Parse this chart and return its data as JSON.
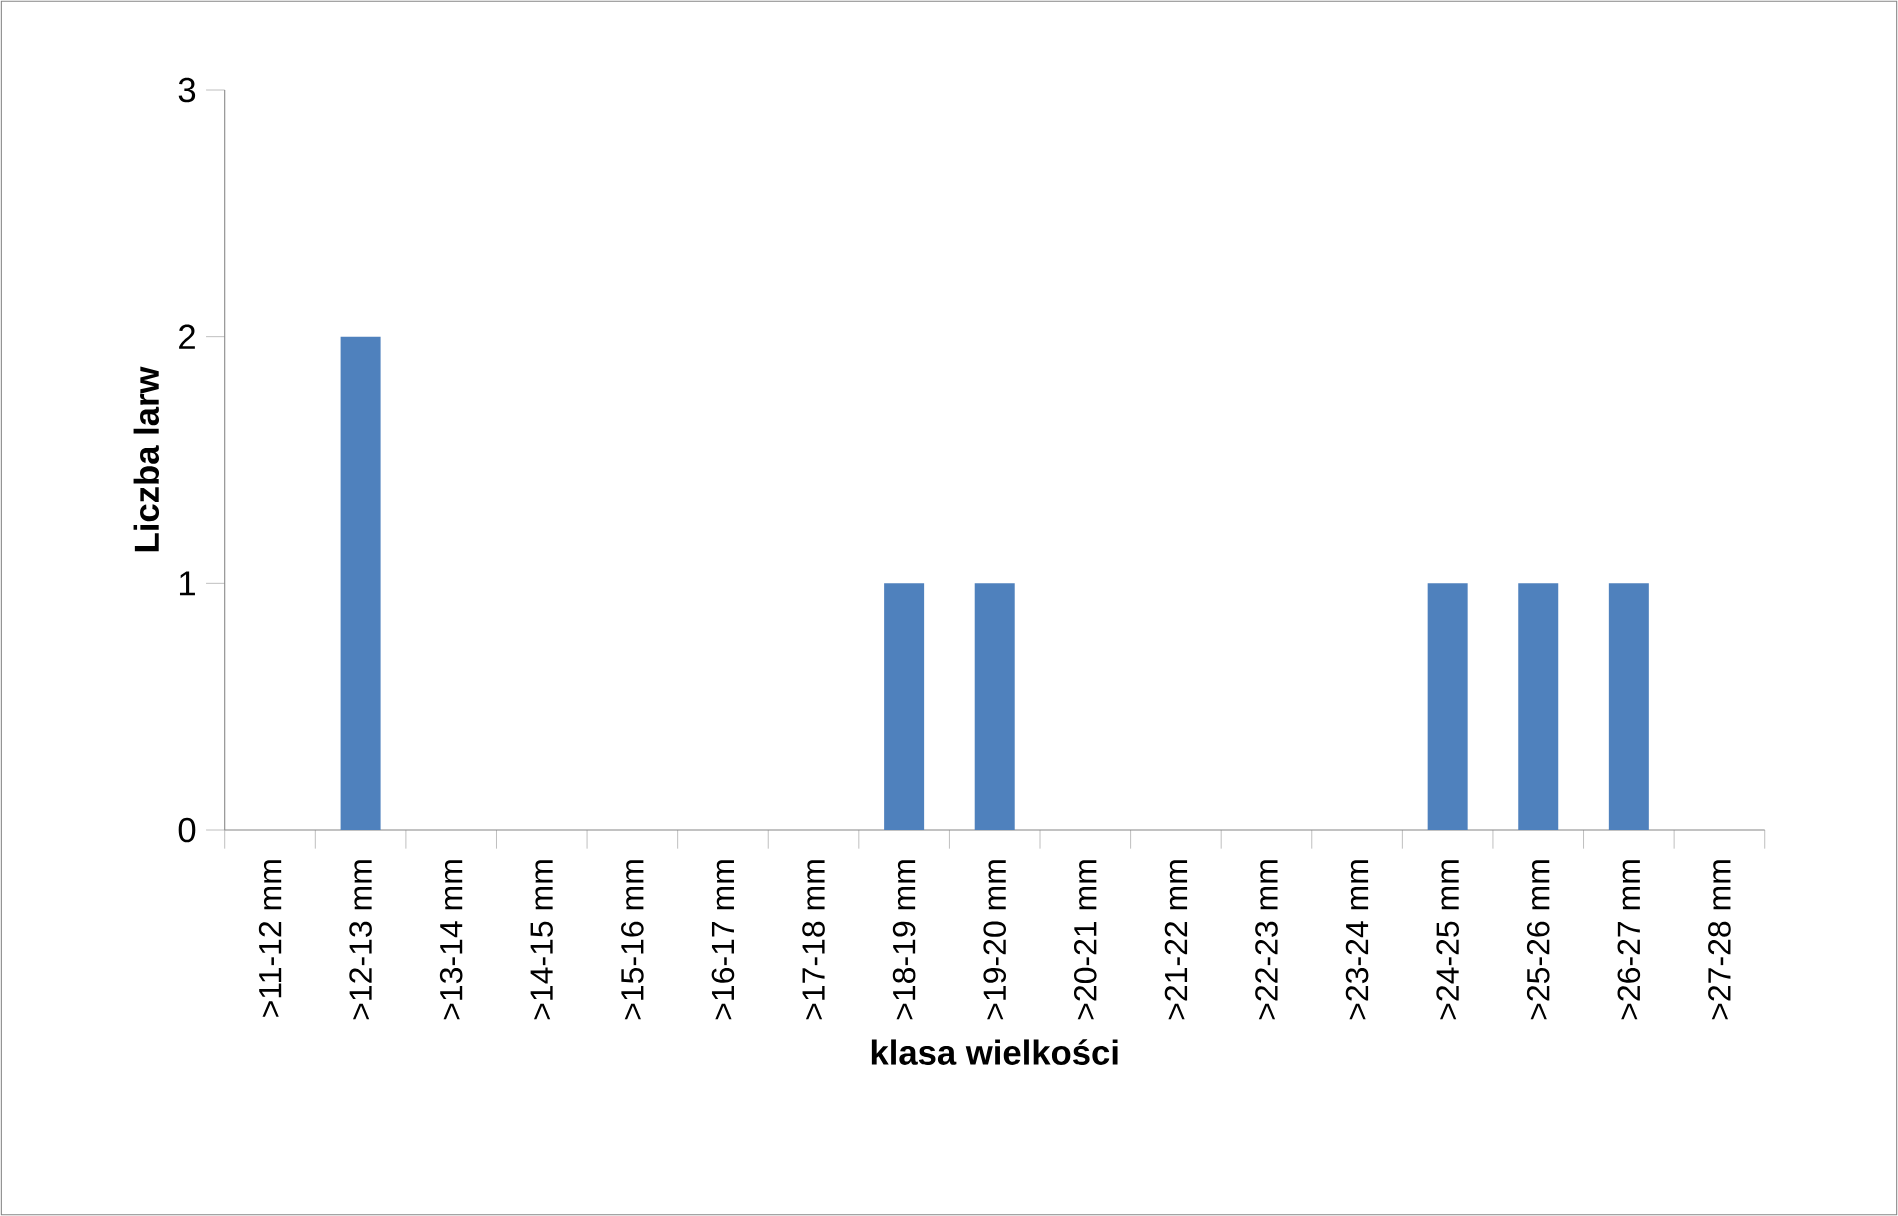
{
  "chart_data": {
    "type": "bar",
    "xlabel": "klasa wielkości",
    "ylabel": "Liczba larw",
    "categories": [
      ">11-12 mm",
      ">12-13 mm",
      ">13-14 mm",
      ">14-15 mm",
      ">15-16 mm",
      ">16-17 mm",
      ">17-18 mm",
      ">18-19 mm",
      ">19-20 mm",
      ">20-21 mm",
      ">21-22 mm",
      ">22-23 mm",
      ">23-24 mm",
      ">24-25 mm",
      ">25-26 mm",
      ">26-27 mm",
      ">27-28 mm"
    ],
    "values": [
      0,
      2,
      0,
      0,
      0,
      0,
      0,
      1,
      1,
      0,
      0,
      0,
      0,
      1,
      1,
      1,
      0
    ],
    "color": "#4f81bd",
    "ylim": [
      0,
      3
    ],
    "yticks": [
      0,
      1,
      2,
      3
    ],
    "grid": false
  }
}
